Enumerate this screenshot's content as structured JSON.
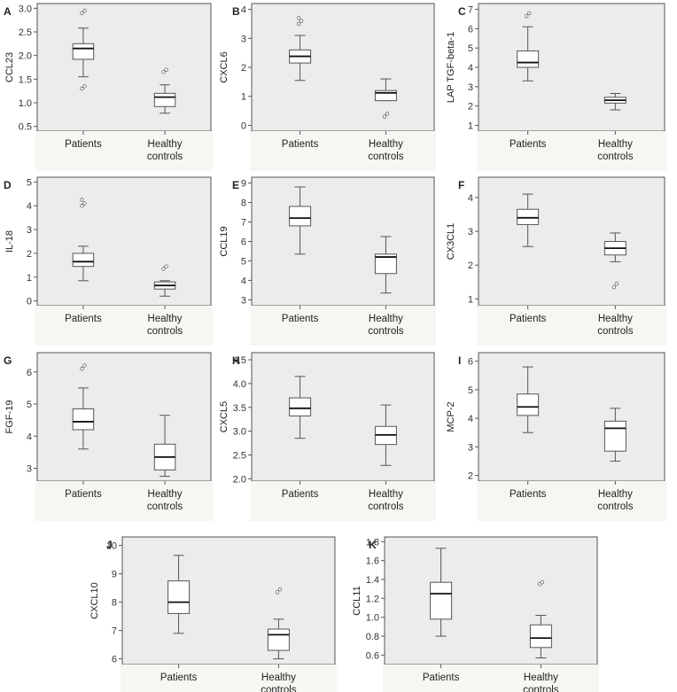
{
  "figure": {
    "group_labels": [
      "Patients",
      "Healthy",
      "controls"
    ]
  },
  "chart_data": [
    {
      "panel": "A",
      "type": "boxplot",
      "ylabel": "CCL23",
      "yticks": [
        "0.5",
        "1.0",
        "1.5",
        "2.0",
        "2.5",
        "3.0"
      ],
      "ylim": [
        0.4,
        3.1
      ],
      "categories": [
        "Patients",
        "Healthy controls"
      ],
      "boxes": [
        {
          "whisker_low": 1.55,
          "q1": 1.92,
          "median": 2.15,
          "q3": 2.25,
          "whisker_high": 2.58,
          "outliers": [
            1.3,
            1.35,
            2.9,
            2.95
          ]
        },
        {
          "whisker_low": 0.78,
          "q1": 0.92,
          "median": 1.12,
          "q3": 1.2,
          "whisker_high": 1.38,
          "outliers": [
            1.65,
            1.7
          ]
        }
      ]
    },
    {
      "panel": "B",
      "type": "boxplot",
      "ylabel": "CXCL6",
      "yticks": [
        "0",
        "1",
        "2",
        "3",
        "4"
      ],
      "ylim": [
        -0.2,
        4.2
      ],
      "categories": [
        "Patients",
        "Healthy controls"
      ],
      "boxes": [
        {
          "whisker_low": 1.55,
          "q1": 2.15,
          "median": 2.38,
          "q3": 2.6,
          "whisker_high": 3.1,
          "outliers": [
            3.5,
            3.6,
            3.7
          ]
        },
        {
          "whisker_low": 0.85,
          "q1": 0.85,
          "median": 1.12,
          "q3": 1.2,
          "whisker_high": 1.6,
          "outliers": [
            0.3,
            0.4
          ]
        }
      ]
    },
    {
      "panel": "C",
      "type": "boxplot",
      "ylabel": "LAP TGF-beta-1",
      "yticks": [
        "1",
        "2",
        "3",
        "4",
        "5",
        "6",
        "7"
      ],
      "ylim": [
        0.7,
        7.3
      ],
      "categories": [
        "Patients",
        "Healthy controls"
      ],
      "boxes": [
        {
          "whisker_low": 3.3,
          "q1": 4.0,
          "median": 4.25,
          "q3": 4.85,
          "whisker_high": 6.1,
          "outliers": [
            6.65,
            6.8
          ]
        },
        {
          "whisker_low": 1.8,
          "q1": 2.15,
          "median": 2.3,
          "q3": 2.45,
          "whisker_high": 2.65,
          "outliers": []
        }
      ]
    },
    {
      "panel": "D",
      "type": "boxplot",
      "ylabel": "IL-18",
      "yticks": [
        "0",
        "1",
        "2",
        "3",
        "4",
        "5"
      ],
      "ylim": [
        -0.2,
        5.2
      ],
      "categories": [
        "Patients",
        "Healthy controls"
      ],
      "boxes": [
        {
          "whisker_low": 0.85,
          "q1": 1.45,
          "median": 1.65,
          "q3": 2.0,
          "whisker_high": 2.3,
          "outliers": [
            4.0,
            4.1,
            4.25
          ]
        },
        {
          "whisker_low": 0.2,
          "q1": 0.5,
          "median": 0.65,
          "q3": 0.8,
          "whisker_high": 0.85,
          "outliers": [
            1.35,
            1.45
          ]
        }
      ]
    },
    {
      "panel": "E",
      "type": "boxplot",
      "ylabel": "CCL19",
      "yticks": [
        "3",
        "4",
        "5",
        "6",
        "7",
        "8",
        "9"
      ],
      "ylim": [
        2.7,
        9.3
      ],
      "categories": [
        "Patients",
        "Healthy controls"
      ],
      "boxes": [
        {
          "whisker_low": 5.35,
          "q1": 6.8,
          "median": 7.2,
          "q3": 7.8,
          "whisker_high": 8.8,
          "outliers": []
        },
        {
          "whisker_low": 3.35,
          "q1": 4.35,
          "median": 5.2,
          "q3": 5.35,
          "whisker_high": 6.25,
          "outliers": []
        }
      ]
    },
    {
      "panel": "F",
      "type": "boxplot",
      "ylabel": "CX3CL1",
      "yticks": [
        "1",
        "2",
        "3",
        "4"
      ],
      "ylim": [
        0.8,
        4.6
      ],
      "categories": [
        "Patients",
        "Healthy controls"
      ],
      "boxes": [
        {
          "whisker_low": 2.55,
          "q1": 3.2,
          "median": 3.4,
          "q3": 3.65,
          "whisker_high": 4.1,
          "outliers": []
        },
        {
          "whisker_low": 2.1,
          "q1": 2.3,
          "median": 2.5,
          "q3": 2.7,
          "whisker_high": 2.95,
          "outliers": [
            1.35,
            1.45
          ]
        }
      ]
    },
    {
      "panel": "G",
      "type": "boxplot",
      "ylabel": "FGF-19",
      "yticks": [
        "3",
        "4",
        "5",
        "6"
      ],
      "ylim": [
        2.6,
        6.6
      ],
      "categories": [
        "Patients",
        "Healthy controls"
      ],
      "boxes": [
        {
          "whisker_low": 3.6,
          "q1": 4.2,
          "median": 4.45,
          "q3": 4.85,
          "whisker_high": 5.5,
          "outliers": [
            6.1,
            6.2
          ]
        },
        {
          "whisker_low": 2.75,
          "q1": 2.95,
          "median": 3.35,
          "q3": 3.75,
          "whisker_high": 4.65,
          "outliers": []
        }
      ]
    },
    {
      "panel": "H",
      "type": "boxplot",
      "ylabel": "CXCL5",
      "yticks": [
        "2.0",
        "2.5",
        "3.0",
        "3.5",
        "4.0",
        "4.5"
      ],
      "ylim": [
        1.95,
        4.65
      ],
      "categories": [
        "Patients",
        "Healthy controls"
      ],
      "boxes": [
        {
          "whisker_low": 2.85,
          "q1": 3.32,
          "median": 3.48,
          "q3": 3.7,
          "whisker_high": 4.15,
          "outliers": []
        },
        {
          "whisker_low": 2.28,
          "q1": 2.72,
          "median": 2.92,
          "q3": 3.1,
          "whisker_high": 3.55,
          "outliers": []
        }
      ]
    },
    {
      "panel": "I",
      "type": "boxplot",
      "ylabel": "MCP-2",
      "yticks": [
        "2",
        "3",
        "4",
        "5",
        "6"
      ],
      "ylim": [
        1.8,
        6.3
      ],
      "categories": [
        "Patients",
        "Healthy controls"
      ],
      "boxes": [
        {
          "whisker_low": 3.5,
          "q1": 4.1,
          "median": 4.4,
          "q3": 4.85,
          "whisker_high": 5.8,
          "outliers": []
        },
        {
          "whisker_low": 2.5,
          "q1": 2.85,
          "median": 3.65,
          "q3": 3.9,
          "whisker_high": 4.35,
          "outliers": []
        }
      ]
    },
    {
      "panel": "J",
      "type": "boxplot",
      "ylabel": "CXCL10",
      "yticks": [
        "6",
        "7",
        "8",
        "9",
        "10"
      ],
      "ylim": [
        5.8,
        10.3
      ],
      "categories": [
        "Patients",
        "Healthy controls"
      ],
      "boxes": [
        {
          "whisker_low": 6.9,
          "q1": 7.6,
          "median": 8.0,
          "q3": 8.75,
          "whisker_high": 9.65,
          "outliers": []
        },
        {
          "whisker_low": 6.0,
          "q1": 6.3,
          "median": 6.85,
          "q3": 7.05,
          "whisker_high": 7.4,
          "outliers": [
            8.35,
            8.45
          ]
        }
      ]
    },
    {
      "panel": "K",
      "type": "boxplot",
      "ylabel": "CCL11",
      "yticks": [
        "0.6",
        "0.8",
        "1.0",
        "1.2",
        "1.4",
        "1.6",
        "1.8"
      ],
      "ylim": [
        0.5,
        1.85
      ],
      "categories": [
        "Patients",
        "Healthy controls"
      ],
      "boxes": [
        {
          "whisker_low": 0.8,
          "q1": 0.98,
          "median": 1.25,
          "q3": 1.37,
          "whisker_high": 1.73,
          "outliers": []
        },
        {
          "whisker_low": 0.57,
          "q1": 0.68,
          "median": 0.78,
          "q3": 0.92,
          "whisker_high": 1.02,
          "outliers": [
            1.35,
            1.37
          ]
        }
      ]
    }
  ]
}
